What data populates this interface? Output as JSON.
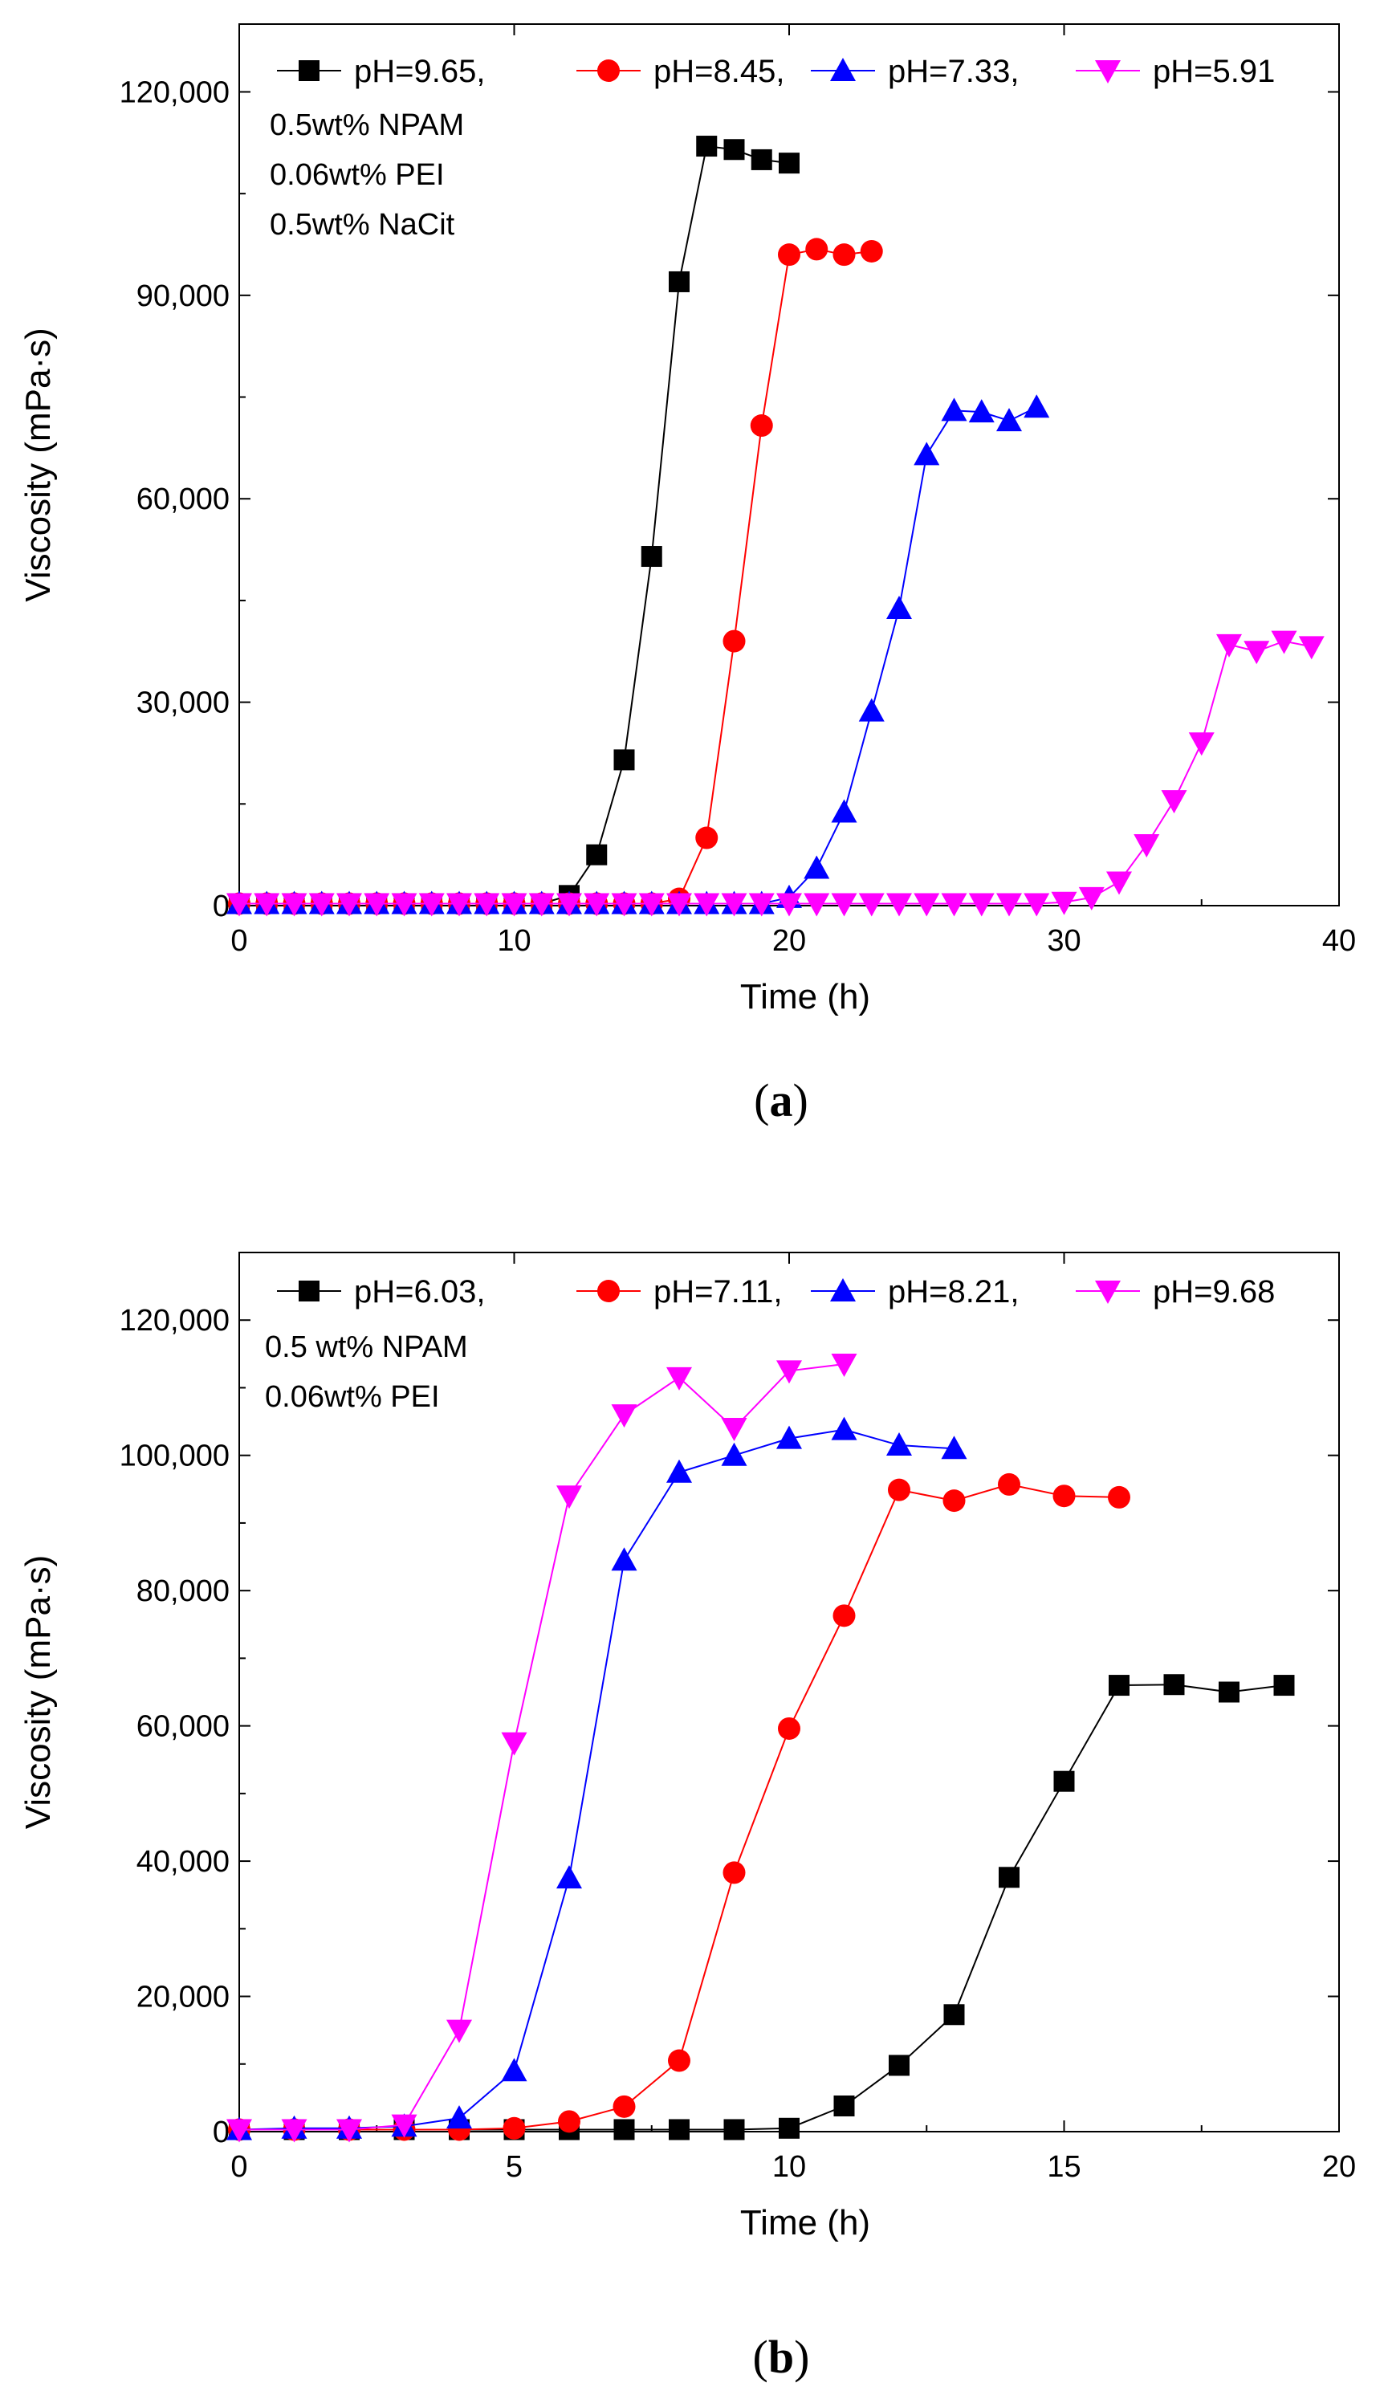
{
  "colors": {
    "black": "#000000",
    "red": "#ff0000",
    "blue": "#0000ff",
    "magenta": "#ff00ff"
  },
  "chart_data": [
    {
      "type": "line",
      "panel_label": "a",
      "xlabel": "Time (h)",
      "ylabel": "Viscosity (mPa·s)",
      "xlim": [
        0,
        40
      ],
      "ylim": [
        0,
        130000
      ],
      "xticks": [
        0,
        10,
        20,
        30,
        40
      ],
      "xtick_labels": [
        "0",
        "10",
        "20",
        "30",
        "40"
      ],
      "yticks": [
        0,
        30000,
        60000,
        90000,
        120000
      ],
      "ytick_labels": [
        "0",
        "30,000",
        "60,000",
        "90,000",
        "120,000"
      ],
      "grid": false,
      "legend_position": "top",
      "annotations": [
        "0.5wt% NPAM",
        "0.06wt% PEI",
        "0.5wt% NaCit"
      ],
      "series": [
        {
          "name": "pH=9.65,",
          "color": "#000000",
          "marker": "square",
          "x": [
            0,
            1,
            2,
            3,
            4,
            5,
            6,
            7,
            8,
            9,
            10,
            11,
            12,
            13,
            14,
            15,
            16,
            17,
            18,
            19,
            20
          ],
          "y": [
            300,
            300,
            300,
            300,
            300,
            300,
            300,
            300,
            300,
            300,
            300,
            300,
            1500,
            7500,
            21500,
            51500,
            92000,
            112000,
            111500,
            110000,
            109500
          ]
        },
        {
          "name": "pH=8.45,",
          "color": "#ff0000",
          "marker": "circle",
          "x": [
            0,
            1,
            2,
            3,
            4,
            5,
            6,
            7,
            8,
            9,
            10,
            11,
            12,
            13,
            14,
            15,
            16,
            17,
            18,
            19,
            20,
            21,
            22,
            23
          ],
          "y": [
            300,
            300,
            300,
            300,
            300,
            300,
            300,
            300,
            300,
            300,
            300,
            300,
            300,
            300,
            300,
            300,
            1000,
            10000,
            39000,
            70800,
            96000,
            96800,
            96000,
            96500
          ]
        },
        {
          "name": "pH=7.33,",
          "color": "#0000ff",
          "marker": "triangle-up",
          "x": [
            0,
            1,
            2,
            3,
            4,
            5,
            6,
            7,
            8,
            9,
            10,
            11,
            12,
            13,
            14,
            15,
            16,
            17,
            18,
            19,
            20,
            21,
            22,
            23,
            24,
            25,
            26,
            27,
            28,
            29
          ],
          "y": [
            300,
            300,
            300,
            300,
            300,
            300,
            300,
            300,
            300,
            300,
            300,
            300,
            300,
            300,
            300,
            300,
            300,
            300,
            300,
            300,
            1200,
            5500,
            13800,
            28700,
            43800,
            66500,
            73000,
            72800,
            71500,
            73500
          ]
        },
        {
          "name": "pH=5.91",
          "color": "#ff00ff",
          "marker": "triangle-down",
          "x": [
            0,
            1,
            2,
            3,
            4,
            5,
            6,
            7,
            8,
            9,
            10,
            11,
            12,
            13,
            14,
            15,
            16,
            17,
            18,
            19,
            20,
            21,
            22,
            23,
            24,
            25,
            26,
            27,
            28,
            29,
            30,
            31,
            32,
            33,
            34,
            35,
            36,
            37,
            38,
            39
          ],
          "y": [
            300,
            300,
            300,
            300,
            300,
            300,
            300,
            300,
            300,
            300,
            300,
            300,
            300,
            300,
            300,
            300,
            300,
            300,
            300,
            300,
            300,
            300,
            300,
            300,
            300,
            300,
            300,
            300,
            300,
            300,
            500,
            1200,
            3500,
            9000,
            15500,
            24000,
            38500,
            37500,
            39000,
            38200
          ]
        }
      ]
    },
    {
      "type": "line",
      "panel_label": "b",
      "xlabel": "Time (h)",
      "ylabel": "Viscosity (mPa·s)",
      "xlim": [
        0,
        20
      ],
      "ylim": [
        0,
        130000
      ],
      "xticks": [
        0,
        5,
        10,
        15,
        20
      ],
      "xtick_labels": [
        "0",
        "5",
        "10",
        "15",
        "20"
      ],
      "yticks": [
        0,
        20000,
        40000,
        60000,
        80000,
        100000,
        120000
      ],
      "ytick_labels": [
        "0",
        "20,000",
        "40,000",
        "60,000",
        "80,000",
        "100,000",
        "120,000"
      ],
      "grid": false,
      "legend_position": "top",
      "annotations": [
        "0.5 wt% NPAM",
        "0.06wt% PEI"
      ],
      "series": [
        {
          "name": "pH=6.03,",
          "color": "#000000",
          "marker": "square",
          "x": [
            0,
            1,
            2,
            3,
            4,
            5,
            6,
            7,
            8,
            9,
            10,
            11,
            12,
            13,
            14,
            15,
            16,
            17,
            18,
            19
          ],
          "y": [
            300,
            300,
            300,
            300,
            300,
            300,
            300,
            300,
            300,
            300,
            500,
            3800,
            9800,
            17300,
            37600,
            51800,
            66000,
            66100,
            65000,
            66000
          ]
        },
        {
          "name": "pH=7.11,",
          "color": "#ff0000",
          "marker": "circle",
          "x": [
            0,
            1,
            2,
            3,
            4,
            5,
            6,
            7,
            8,
            9,
            10,
            11,
            12,
            13,
            14,
            15,
            16
          ],
          "y": [
            300,
            300,
            300,
            300,
            300,
            500,
            1500,
            3700,
            10500,
            38300,
            59600,
            76300,
            94900,
            93300,
            95700,
            94000,
            93800
          ]
        },
        {
          "name": "pH=8.21,",
          "color": "#0000ff",
          "marker": "triangle-up",
          "x": [
            0,
            1,
            2,
            3,
            4,
            5,
            6,
            7,
            8,
            9,
            10,
            11,
            12,
            13
          ],
          "y": [
            300,
            500,
            500,
            800,
            2000,
            9000,
            37500,
            84500,
            97500,
            100000,
            102500,
            103800,
            101500,
            101000
          ]
        },
        {
          "name": "pH=9.68",
          "color": "#ff00ff",
          "marker": "triangle-down",
          "x": [
            0,
            1,
            2,
            3,
            4,
            5,
            6,
            7,
            8,
            9,
            10,
            11
          ],
          "y": [
            300,
            300,
            300,
            1000,
            15000,
            57500,
            94000,
            106000,
            111500,
            104000,
            112500,
            113500
          ]
        }
      ]
    }
  ]
}
